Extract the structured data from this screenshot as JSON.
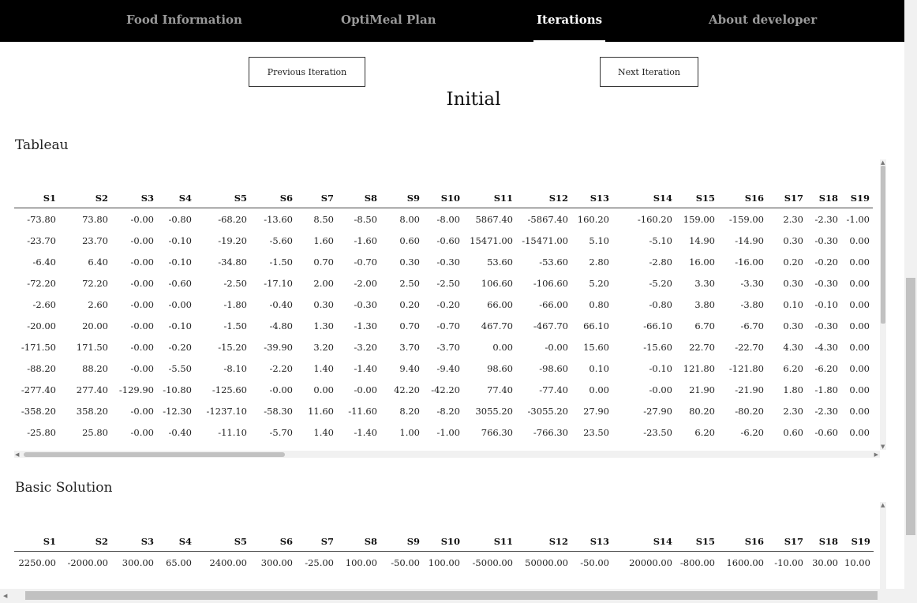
{
  "nav": {
    "items": [
      "Food Information",
      "OptiMeal Plan",
      "Iterations",
      "About developer"
    ],
    "active": "Iterations"
  },
  "buttons": {
    "previous": "Previous Iteration",
    "next": "Next Iteration"
  },
  "iteration_title": "Initial",
  "tableau": {
    "title": "Tableau",
    "headers": [
      "S1",
      "S2",
      "S3",
      "S4",
      "S5",
      "S6",
      "S7",
      "S8",
      "S9",
      "S10",
      "S11",
      "S12",
      "S13",
      "S14",
      "S15",
      "S16",
      "S17",
      "S18",
      "S19"
    ],
    "rows": [
      [
        "-73.80",
        "73.80",
        "-0.00",
        "-0.80",
        "-68.20",
        "-13.60",
        "8.50",
        "-8.50",
        "8.00",
        "-8.00",
        "5867.40",
        "-5867.40",
        "160.20",
        "-160.20",
        "159.00",
        "-159.00",
        "2.30",
        "-2.30",
        "-1.00"
      ],
      [
        "-23.70",
        "23.70",
        "-0.00",
        "-0.10",
        "-19.20",
        "-5.60",
        "1.60",
        "-1.60",
        "0.60",
        "-0.60",
        "15471.00",
        "-15471.00",
        "5.10",
        "-5.10",
        "14.90",
        "-14.90",
        "0.30",
        "-0.30",
        "0.00"
      ],
      [
        "-6.40",
        "6.40",
        "-0.00",
        "-0.10",
        "-34.80",
        "-1.50",
        "0.70",
        "-0.70",
        "0.30",
        "-0.30",
        "53.60",
        "-53.60",
        "2.80",
        "-2.80",
        "16.00",
        "-16.00",
        "0.20",
        "-0.20",
        "0.00"
      ],
      [
        "-72.20",
        "72.20",
        "-0.00",
        "-0.60",
        "-2.50",
        "-17.10",
        "2.00",
        "-2.00",
        "2.50",
        "-2.50",
        "106.60",
        "-106.60",
        "5.20",
        "-5.20",
        "3.30",
        "-3.30",
        "0.30",
        "-0.30",
        "0.00"
      ],
      [
        "-2.60",
        "2.60",
        "-0.00",
        "-0.00",
        "-1.80",
        "-0.40",
        "0.30",
        "-0.30",
        "0.20",
        "-0.20",
        "66.00",
        "-66.00",
        "0.80",
        "-0.80",
        "3.80",
        "-3.80",
        "0.10",
        "-0.10",
        "0.00"
      ],
      [
        "-20.00",
        "20.00",
        "-0.00",
        "-0.10",
        "-1.50",
        "-4.80",
        "1.30",
        "-1.30",
        "0.70",
        "-0.70",
        "467.70",
        "-467.70",
        "66.10",
        "-66.10",
        "6.70",
        "-6.70",
        "0.30",
        "-0.30",
        "0.00"
      ],
      [
        "-171.50",
        "171.50",
        "-0.00",
        "-0.20",
        "-15.20",
        "-39.90",
        "3.20",
        "-3.20",
        "3.70",
        "-3.70",
        "0.00",
        "-0.00",
        "15.60",
        "-15.60",
        "22.70",
        "-22.70",
        "4.30",
        "-4.30",
        "0.00"
      ],
      [
        "-88.20",
        "88.20",
        "-0.00",
        "-5.50",
        "-8.10",
        "-2.20",
        "1.40",
        "-1.40",
        "9.40",
        "-9.40",
        "98.60",
        "-98.60",
        "0.10",
        "-0.10",
        "121.80",
        "-121.80",
        "6.20",
        "-6.20",
        "0.00"
      ],
      [
        "-277.40",
        "277.40",
        "-129.90",
        "-10.80",
        "-125.60",
        "-0.00",
        "0.00",
        "-0.00",
        "42.20",
        "-42.20",
        "77.40",
        "-77.40",
        "0.00",
        "-0.00",
        "21.90",
        "-21.90",
        "1.80",
        "-1.80",
        "0.00"
      ],
      [
        "-358.20",
        "358.20",
        "-0.00",
        "-12.30",
        "-1237.10",
        "-58.30",
        "11.60",
        "-11.60",
        "8.20",
        "-8.20",
        "3055.20",
        "-3055.20",
        "27.90",
        "-27.90",
        "80.20",
        "-80.20",
        "2.30",
        "-2.30",
        "0.00"
      ],
      [
        "-25.80",
        "25.80",
        "-0.00",
        "-0.40",
        "-11.10",
        "-5.70",
        "1.40",
        "-1.40",
        "1.00",
        "-1.00",
        "766.30",
        "-766.30",
        "23.50",
        "-23.50",
        "6.20",
        "-6.20",
        "0.60",
        "-0.60",
        "0.00"
      ]
    ]
  },
  "basic_solution": {
    "title": "Basic Solution",
    "headers": [
      "S1",
      "S2",
      "S3",
      "S4",
      "S5",
      "S6",
      "S7",
      "S8",
      "S9",
      "S10",
      "S11",
      "S12",
      "S13",
      "S14",
      "S15",
      "S16",
      "S17",
      "S18",
      "S19"
    ],
    "values": [
      "2250.00",
      "-2000.00",
      "300.00",
      "65.00",
      "2400.00",
      "300.00",
      "-25.00",
      "100.00",
      "-50.00",
      "100.00",
      "-5000.00",
      "50000.00",
      "-50.00",
      "20000.00",
      "-800.00",
      "1600.00",
      "-10.00",
      "30.00",
      "10.00"
    ]
  }
}
